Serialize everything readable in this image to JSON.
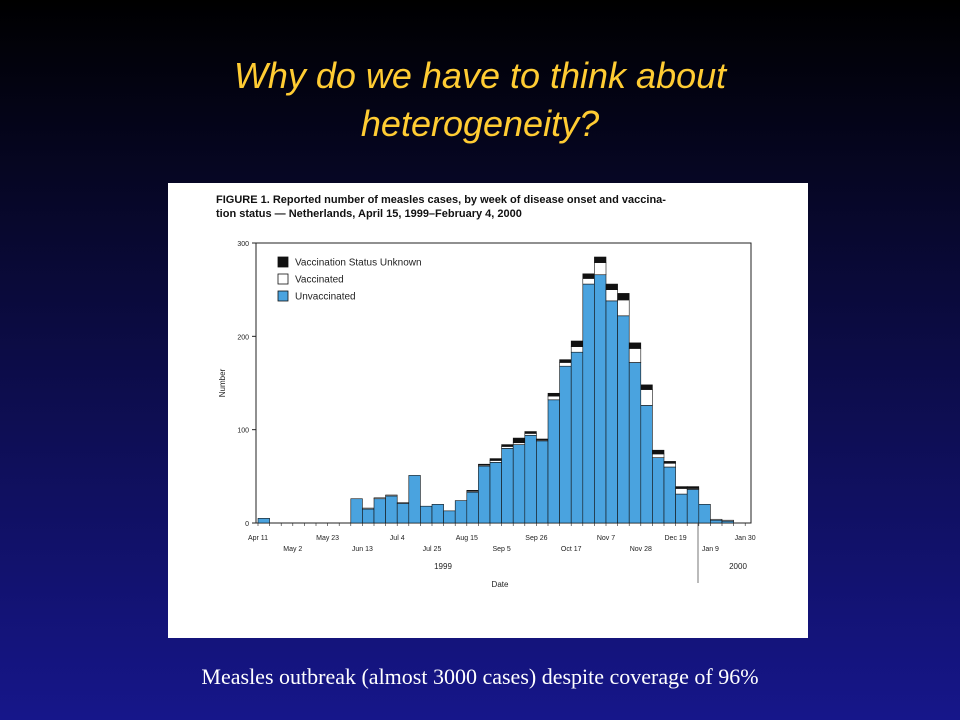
{
  "slide": {
    "title_line1": "Why do we have to think about",
    "title_line2": "heterogeneity?",
    "footer": "Measles outbreak (almost 3000 cases) despite coverage of 96%"
  },
  "figure": {
    "caption_line1": "FIGURE 1. Reported number of measles cases, by week of disease onset and vaccina-",
    "caption_line2": "tion status — Netherlands, April 15, 1999–February 4, 2000"
  },
  "chart_data": {
    "type": "bar",
    "stacked": true,
    "xlabel": "Date",
    "ylabel": "Number",
    "ylim": [
      0,
      300
    ],
    "yticks": [
      0,
      100,
      200,
      300
    ],
    "x_tick_labels_top": [
      "Apr 11",
      "May 23",
      "Jul 4",
      "Aug 15",
      "Sep 26",
      "Nov 7",
      "Dec 19",
      "Jan 30"
    ],
    "x_tick_labels_bottom": [
      "May 2",
      "Jun 13",
      "Jul 25",
      "Sep 5",
      "Oct 17",
      "Nov 28",
      "Jan 9"
    ],
    "year_labels": [
      "1999",
      "2000"
    ],
    "legend_position": "top-left",
    "weeks": 42,
    "series": [
      {
        "name": "Unvaccinated",
        "color": "#4aa3df",
        "values": [
          5,
          0,
          0,
          0,
          0,
          0,
          0,
          0,
          26,
          15,
          26,
          29,
          21,
          51,
          18,
          20,
          13,
          24,
          33,
          61,
          65,
          80,
          84,
          94,
          88,
          132,
          168,
          183,
          256,
          266,
          238,
          222,
          172,
          126,
          70,
          60,
          31,
          36,
          20,
          3,
          2,
          0
        ]
      },
      {
        "name": "Vaccinated",
        "color": "#ffffff",
        "values": [
          0,
          0,
          0,
          0,
          0,
          0,
          0,
          0,
          0,
          1,
          1,
          1,
          1,
          0,
          0,
          0,
          0,
          0,
          1,
          1,
          2,
          2,
          2,
          2,
          1,
          4,
          4,
          6,
          6,
          13,
          12,
          17,
          15,
          17,
          4,
          4,
          6,
          1,
          0,
          1,
          1,
          0
        ]
      },
      {
        "name": "Vaccination Status Unknown",
        "color": "#111111",
        "values": [
          0,
          0,
          0,
          0,
          0,
          0,
          0,
          0,
          0,
          0,
          0,
          0,
          0,
          0,
          0,
          0,
          0,
          0,
          1,
          1,
          2,
          2,
          5,
          2,
          1,
          3,
          3,
          6,
          5,
          6,
          6,
          7,
          6,
          5,
          4,
          2,
          2,
          2,
          0,
          0,
          0,
          0
        ]
      }
    ]
  }
}
